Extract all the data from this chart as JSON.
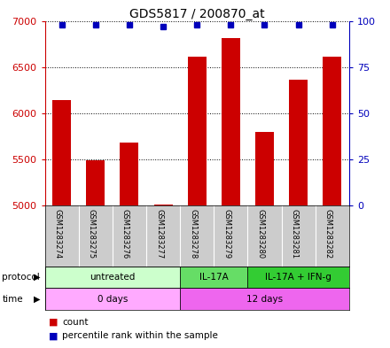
{
  "title": "GDS5817 / 200870_at",
  "samples": [
    "GSM1283274",
    "GSM1283275",
    "GSM1283276",
    "GSM1283277",
    "GSM1283278",
    "GSM1283279",
    "GSM1283280",
    "GSM1283281",
    "GSM1283282"
  ],
  "counts": [
    6140,
    5490,
    5680,
    5010,
    6610,
    6810,
    5800,
    6360,
    6610
  ],
  "percentile_ranks": [
    98,
    98,
    98,
    97,
    98,
    98,
    98,
    98,
    98
  ],
  "ylim_left": [
    5000,
    7000
  ],
  "ylim_right": [
    0,
    100
  ],
  "yticks_left": [
    5000,
    5500,
    6000,
    6500,
    7000
  ],
  "yticks_right": [
    0,
    25,
    50,
    75,
    100
  ],
  "bar_color": "#cc0000",
  "dot_color": "#0000bb",
  "protocol_groups": [
    {
      "label": "untreated",
      "start": 0,
      "end": 4,
      "color": "#ccffcc"
    },
    {
      "label": "IL-17A",
      "start": 4,
      "end": 6,
      "color": "#66dd66"
    },
    {
      "label": "IL-17A + IFN-g",
      "start": 6,
      "end": 9,
      "color": "#33cc33"
    }
  ],
  "time_groups": [
    {
      "label": "0 days",
      "start": 0,
      "end": 4,
      "color": "#ffaaff"
    },
    {
      "label": "12 days",
      "start": 4,
      "end": 9,
      "color": "#ee66ee"
    }
  ],
  "protocol_label": "protocol",
  "time_label": "time",
  "legend_count_label": "count",
  "legend_pct_label": "percentile rank within the sample",
  "title_fontsize": 10,
  "axis_label_color_left": "#cc0000",
  "axis_label_color_right": "#0000bb",
  "background_color": "#ffffff",
  "plot_bg_color": "#ffffff",
  "grid_color": "#000000",
  "sample_bg_color": "#cccccc"
}
